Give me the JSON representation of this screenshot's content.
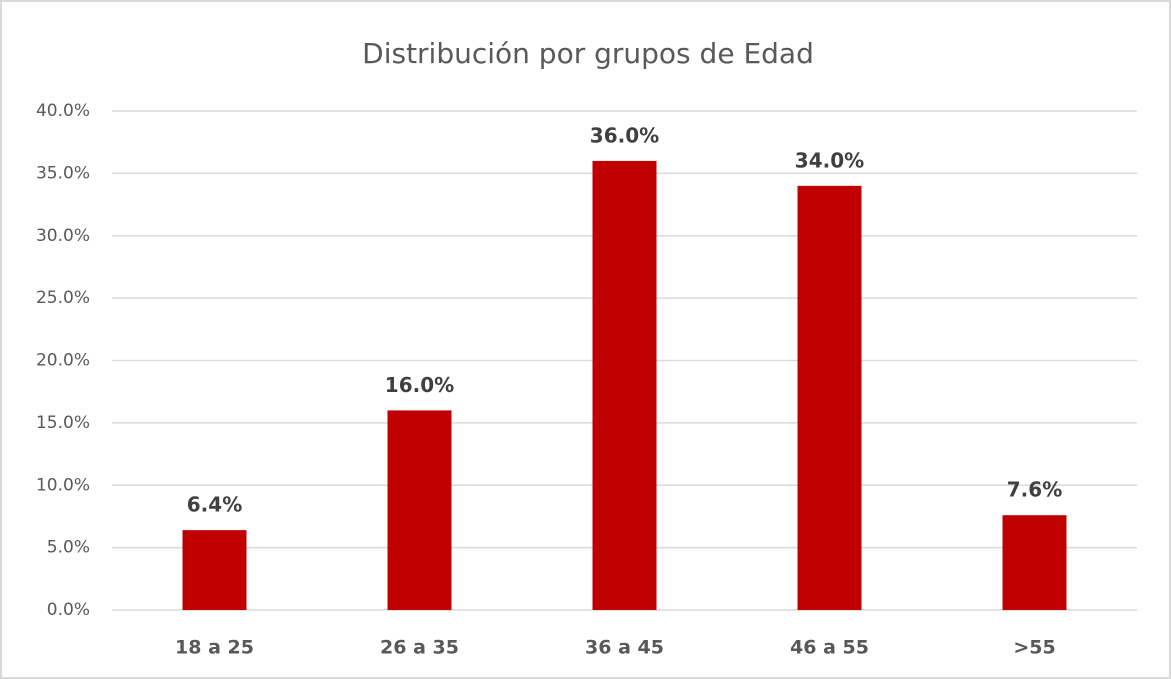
{
  "chart_data": {
    "type": "bar",
    "title": "Distribución por grupos de Edad",
    "categories": [
      "18 a 25",
      "26 a 35",
      "36 a 45",
      "46 a 55",
      ">55"
    ],
    "values": [
      6.4,
      16.0,
      36.0,
      34.0,
      7.6
    ],
    "value_labels": [
      "6.4%",
      "16.0%",
      "36.0%",
      "34.0%",
      "7.6%"
    ],
    "color": "#c00000",
    "ylim": [
      0,
      40
    ],
    "yticks": [
      {
        "value": 0,
        "label": "0.0%"
      },
      {
        "value": 5,
        "label": "5.0%"
      },
      {
        "value": 10,
        "label": "10.0%"
      },
      {
        "value": 15,
        "label": "15.0%"
      },
      {
        "value": 20,
        "label": "20.0%"
      },
      {
        "value": 25,
        "label": "25.0%"
      },
      {
        "value": 30,
        "label": "30.0%"
      },
      {
        "value": 35,
        "label": "35.0%"
      },
      {
        "value": 40,
        "label": "40.0%"
      }
    ],
    "grid": true
  }
}
